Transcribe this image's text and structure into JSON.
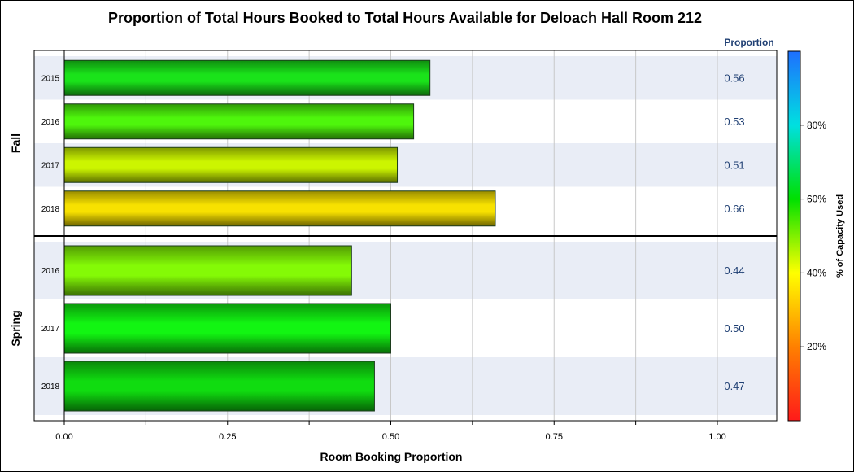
{
  "chart_data": {
    "type": "bar",
    "orientation": "horizontal",
    "title": "Proportion of Total Hours Booked to Total Hours Available for Deloach Hall Room 212",
    "xlabel": "Room Booking Proportion",
    "xlim": [
      0,
      1
    ],
    "x_ticks": [
      "0.00",
      "0.25",
      "0.50",
      "0.75",
      "1.00"
    ],
    "value_column_header": "Proportion",
    "grid": true,
    "groups": [
      {
        "name": "Fall",
        "rows": [
          {
            "category": "2015",
            "value": 0.56,
            "label": "0.56",
            "color": "#1ae31a"
          },
          {
            "category": "2016",
            "value": 0.535,
            "label": "0.53",
            "color": "#4ef60c"
          },
          {
            "category": "2017",
            "value": 0.51,
            "label": "0.51",
            "color": "#ccf500"
          },
          {
            "category": "2018",
            "value": 0.66,
            "label": "0.66",
            "color": "#f7e100"
          }
        ]
      },
      {
        "name": "Spring",
        "rows": [
          {
            "category": "2016",
            "value": 0.44,
            "label": "0.44",
            "color": "#84fa06"
          },
          {
            "category": "2017",
            "value": 0.5,
            "label": "0.50",
            "color": "#12f512"
          },
          {
            "category": "2018",
            "value": 0.475,
            "label": "0.47",
            "color": "#10dc10"
          }
        ]
      }
    ],
    "colorbar": {
      "title": "% of Capacity Used",
      "range": [
        0,
        100
      ],
      "ticks": [
        {
          "value": 20,
          "label": "20%"
        },
        {
          "value": 40,
          "label": "40%"
        },
        {
          "value": 60,
          "label": "60%"
        },
        {
          "value": 80,
          "label": "80%"
        }
      ],
      "stops": [
        "#ff1a1a",
        "#ff8000",
        "#ffff00",
        "#00e000",
        "#00e0e0",
        "#1e6fff"
      ]
    }
  }
}
